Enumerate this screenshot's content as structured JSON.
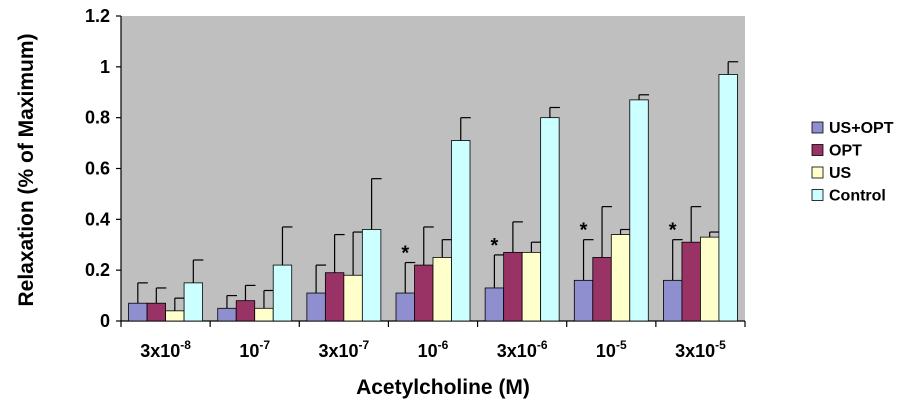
{
  "chart_data": {
    "type": "bar",
    "xlabel": "Acetylcholine (M)",
    "ylabel": "Relaxation (% of Maximum)",
    "ylim": [
      0,
      1.2
    ],
    "yticks": [
      "0",
      "0.2",
      "0.4",
      "0.6",
      "0.8",
      "1",
      "1.2"
    ],
    "ytick_values": [
      0,
      0.2,
      0.4,
      0.6,
      0.8,
      1,
      1.2
    ],
    "categories": [
      {
        "base": "3x10",
        "exp": "-8"
      },
      {
        "base": "10",
        "exp": "-7"
      },
      {
        "base": "3x10",
        "exp": "-7"
      },
      {
        "base": "10",
        "exp": "-6"
      },
      {
        "base": "3x10",
        "exp": "-6"
      },
      {
        "base": "10",
        "exp": "-5"
      },
      {
        "base": "3x10",
        "exp": "-5"
      }
    ],
    "series": [
      {
        "name": "US+OPT",
        "color": "#8f8fcf",
        "values": [
          0.07,
          0.05,
          0.11,
          0.11,
          0.13,
          0.16,
          0.16
        ],
        "errors": [
          0.08,
          0.05,
          0.11,
          0.12,
          0.13,
          0.16,
          0.16
        ]
      },
      {
        "name": "OPT",
        "color": "#993366",
        "values": [
          0.07,
          0.08,
          0.19,
          0.22,
          0.27,
          0.25,
          0.31
        ],
        "errors": [
          0.06,
          0.06,
          0.15,
          0.15,
          0.12,
          0.2,
          0.14
        ]
      },
      {
        "name": "US",
        "color": "#ffffcc",
        "values": [
          0.04,
          0.05,
          0.18,
          0.25,
          0.27,
          0.34,
          0.33
        ],
        "errors": [
          0.05,
          0.07,
          0.17,
          0.07,
          0.04,
          0.02,
          0.02
        ]
      },
      {
        "name": "Control",
        "color": "#ccffff",
        "values": [
          0.15,
          0.22,
          0.36,
          0.71,
          0.8,
          0.87,
          0.97
        ],
        "errors": [
          0.09,
          0.15,
          0.2,
          0.09,
          0.04,
          0.02,
          0.05
        ]
      }
    ],
    "significance_marker": "*",
    "significant_categories": [
      3,
      4,
      5,
      6
    ],
    "significant_series": "US+OPT",
    "grid": false,
    "legend_position": "right",
    "plot_background": "#bfbfbf"
  }
}
